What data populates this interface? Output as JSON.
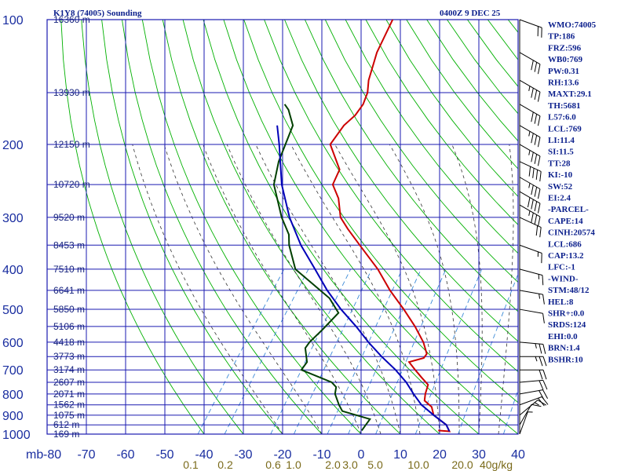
{
  "chart_data": {
    "type": "line",
    "title": "K1Y8 (74005) Sounding",
    "datetime": "0400Z  9 DEC 25",
    "x_axis": {
      "name": "temperature",
      "ticks": [
        -80,
        -70,
        -60,
        -50,
        -40,
        -30,
        -20,
        -10,
        0,
        10,
        20,
        30,
        40
      ],
      "range": [
        -80,
        40
      ]
    },
    "x_axis_left_label": "mb",
    "y_axis": {
      "name": "pressure",
      "scale": "log",
      "range": [
        1000,
        100
      ],
      "ticks": [
        100,
        200,
        300,
        400,
        500,
        600,
        700,
        800,
        900,
        1000
      ]
    },
    "mixing_ratio_labels": [
      "0.1",
      "0.2",
      "0.6",
      "1.0",
      "2.0",
      "3.0",
      "5.0",
      "10.0",
      "20.0",
      "40g/kg"
    ],
    "heights": [
      {
        "p": 100,
        "label": "16360 m"
      },
      {
        "p": 150,
        "label": "13930 m"
      },
      {
        "p": 200,
        "label": "12150 m"
      },
      {
        "p": 250,
        "label": "10720 m"
      },
      {
        "p": 300,
        "label": "9520 m"
      },
      {
        "p": 350,
        "label": "8453 m"
      },
      {
        "p": 400,
        "label": "7510 m"
      },
      {
        "p": 450,
        "label": "6641 m"
      },
      {
        "p": 500,
        "label": "5850 m"
      },
      {
        "p": 550,
        "label": "5106 m"
      },
      {
        "p": 600,
        "label": "4418 m"
      },
      {
        "p": 650,
        "label": "3773 m"
      },
      {
        "p": 700,
        "label": "3174 m"
      },
      {
        "p": 750,
        "label": "2607 m"
      },
      {
        "p": 800,
        "label": "2071 m"
      },
      {
        "p": 850,
        "label": "1562 m"
      },
      {
        "p": 900,
        "label": "1075 m"
      },
      {
        "p": 950,
        "label": "612 m"
      },
      {
        "p": 1000,
        "label": "169 m"
      }
    ],
    "series": [
      {
        "name": "temperature",
        "color": "#cc0000",
        "points": [
          [
            980,
            19
          ],
          [
            985,
            22
          ],
          [
            950,
            20
          ],
          [
            900,
            15
          ],
          [
            860,
            13
          ],
          [
            830,
            10
          ],
          [
            800,
            9
          ],
          [
            760,
            8
          ],
          [
            730,
            5
          ],
          [
            700,
            2
          ],
          [
            670,
            -1
          ],
          [
            655,
            2
          ],
          [
            640,
            2
          ],
          [
            600,
            -1
          ],
          [
            550,
            -6
          ],
          [
            500,
            -12
          ],
          [
            450,
            -19
          ],
          [
            400,
            -26
          ],
          [
            350,
            -35
          ],
          [
            320,
            -41
          ],
          [
            300,
            -45
          ],
          [
            270,
            -49
          ],
          [
            250,
            -53
          ],
          [
            230,
            -54
          ],
          [
            200,
            -61
          ],
          [
            180,
            -61
          ],
          [
            170,
            -60
          ],
          [
            160,
            -60
          ],
          [
            150,
            -61
          ],
          [
            140,
            -63
          ],
          [
            120,
            -66
          ],
          [
            100,
            -68
          ]
        ]
      },
      {
        "name": "dewpoint",
        "color": "#003f00",
        "points": [
          [
            980,
            -0.5
          ],
          [
            950,
            -0.5
          ],
          [
            920,
            -0.5
          ],
          [
            880,
            -9
          ],
          [
            850,
            -11
          ],
          [
            800,
            -14
          ],
          [
            770,
            -15
          ],
          [
            750,
            -17
          ],
          [
            700,
            -27
          ],
          [
            670,
            -27
          ],
          [
            620,
            -30
          ],
          [
            600,
            -30
          ],
          [
            560,
            -29
          ],
          [
            510,
            -28
          ],
          [
            470,
            -33
          ],
          [
            400,
            -47
          ],
          [
            350,
            -53
          ],
          [
            330,
            -55
          ],
          [
            300,
            -60
          ],
          [
            250,
            -68
          ],
          [
            220,
            -71
          ],
          [
            180,
            -74
          ],
          [
            165,
            -78
          ],
          [
            160,
            -80
          ]
        ]
      },
      {
        "name": "parcel",
        "color": "#0000b8",
        "points": [
          [
            985,
            22
          ],
          [
            950,
            20
          ],
          [
            900,
            15
          ],
          [
            850,
            10
          ],
          [
            800,
            6
          ],
          [
            750,
            2
          ],
          [
            700,
            -3
          ],
          [
            650,
            -9
          ],
          [
            600,
            -15
          ],
          [
            550,
            -21
          ],
          [
            500,
            -28
          ],
          [
            450,
            -35
          ],
          [
            400,
            -42
          ],
          [
            350,
            -50
          ],
          [
            300,
            -58
          ],
          [
            250,
            -66
          ],
          [
            200,
            -74
          ],
          [
            180,
            -78
          ]
        ]
      }
    ],
    "wind_barbs": [
      {
        "p": 1000,
        "spd": 5,
        "dir": 200
      },
      {
        "p": 950,
        "spd": 10,
        "dir": 210
      },
      {
        "p": 900,
        "spd": 15,
        "dir": 230
      },
      {
        "p": 850,
        "spd": 20,
        "dir": 250
      },
      {
        "p": 800,
        "spd": 20,
        "dir": 260
      },
      {
        "p": 750,
        "spd": 20,
        "dir": 265
      },
      {
        "p": 700,
        "spd": 20,
        "dir": 270
      },
      {
        "p": 650,
        "spd": 25,
        "dir": 270
      },
      {
        "p": 600,
        "spd": 25,
        "dir": 275
      },
      {
        "p": 500,
        "spd": 10,
        "dir": 280
      },
      {
        "p": 450,
        "spd": 15,
        "dir": 280
      },
      {
        "p": 400,
        "spd": 15,
        "dir": 285
      },
      {
        "p": 350,
        "spd": 15,
        "dir": 290
      },
      {
        "p": 300,
        "spd": 20,
        "dir": 295
      },
      {
        "p": 280,
        "spd": 35,
        "dir": 300
      },
      {
        "p": 260,
        "spd": 40,
        "dir": 300
      },
      {
        "p": 240,
        "spd": 35,
        "dir": 300
      },
      {
        "p": 220,
        "spd": 40,
        "dir": 295
      },
      {
        "p": 200,
        "spd": 35,
        "dir": 300
      },
      {
        "p": 180,
        "spd": 35,
        "dir": 300
      },
      {
        "p": 160,
        "spd": 30,
        "dir": 300
      },
      {
        "p": 140,
        "spd": 35,
        "dir": 300
      },
      {
        "p": 120,
        "spd": 30,
        "dir": 300
      },
      {
        "p": 100,
        "spd": 20,
        "dir": 290
      }
    ],
    "indices": [
      "WMO:74005",
      "TP:186",
      "FRZ:596",
      "WB0:769",
      "PW:0.31",
      "RH:13.6",
      "MAXT:29.1",
      "TH:5681",
      "L57:6.0",
      "LCL:769",
      "LI:11.4",
      "SI:11.5",
      "TT:28",
      "KI:-10",
      "SW:52",
      "EI:2.4",
      "-PARCEL-",
      "CAPE:14",
      "CINH:20574",
      "LCL:686",
      "CAP:13.2",
      "LFC:-1",
      "-WIND-",
      "STM:48/12",
      "HEL:8",
      "SHR+:0.0",
      "SRDS:124",
      "EHI:0.0",
      "BRN:1.4",
      "BSHR:10"
    ],
    "colors": {
      "grid": "#1a1ab0",
      "dry_adiabat": "#00b000",
      "moist_adiabat": "#333333",
      "mixing_ratio": "#3a8ad8",
      "axis_text": "#1a2ea0"
    }
  }
}
